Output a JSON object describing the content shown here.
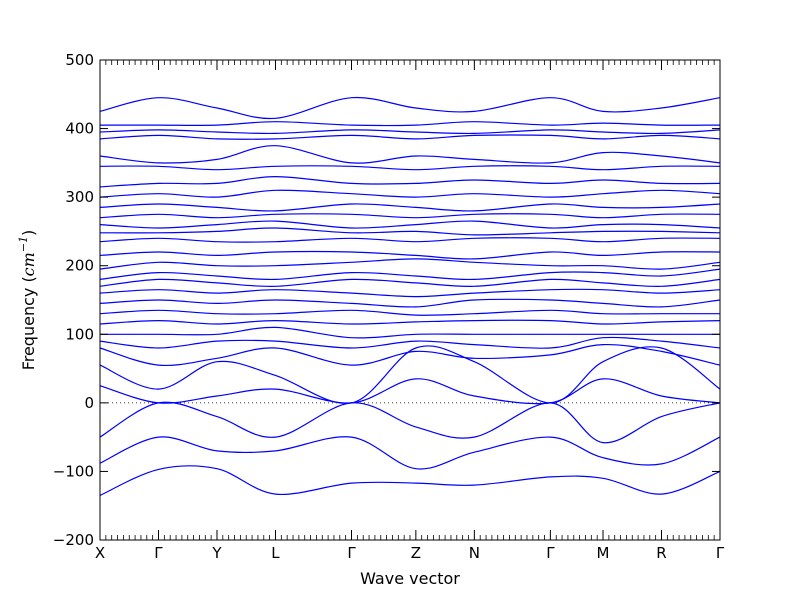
{
  "chart_data": {
    "type": "line",
    "title": "",
    "xlabel": "Wave vector",
    "ylabel_prefix": "Frequency (",
    "ylabel_unit": "cm",
    "ylabel_exp": "−1",
    "ylabel_suffix": ")",
    "ylim": [
      -200,
      500
    ],
    "yticks": [
      -200,
      -100,
      0,
      100,
      200,
      300,
      400,
      500
    ],
    "ytick_labels": [
      "−200",
      "−100",
      "0",
      "100",
      "200",
      "300",
      "400",
      "500"
    ],
    "x_segments": [
      "X",
      "Γ",
      "Y",
      "L",
      "Γ",
      "Z",
      "N",
      "Γ",
      "M",
      "R",
      "Γ"
    ],
    "x_segment_lengths": [
      1.0,
      1.0,
      1.0,
      1.3,
      1.1,
      1.0,
      1.3,
      0.9,
      1.0,
      1.0
    ],
    "zero_line": {
      "value": 0,
      "style": "dotted"
    },
    "grid": false,
    "legend": "none",
    "line_color": "#0000ff",
    "series": [
      {
        "values": [
          -135,
          -97,
          -96,
          -133,
          -117,
          -117,
          -120,
          -108,
          -110,
          -133,
          -100
        ]
      },
      {
        "values": [
          -88,
          -50,
          -70,
          -70,
          -50,
          -96,
          -72,
          -50,
          -80,
          -89,
          -50
        ]
      },
      {
        "values": [
          -50,
          0,
          -20,
          -50,
          0,
          -35,
          -50,
          0,
          -58,
          -20,
          0
        ]
      },
      {
        "values": [
          25,
          0,
          10,
          20,
          0,
          35,
          10,
          0,
          35,
          10,
          0
        ]
      },
      {
        "values": [
          55,
          20,
          60,
          40,
          0,
          80,
          60,
          0,
          60,
          80,
          20
        ]
      },
      {
        "values": [
          80,
          55,
          65,
          80,
          55,
          75,
          65,
          70,
          85,
          75,
          55
        ]
      },
      {
        "values": [
          90,
          80,
          90,
          90,
          80,
          90,
          85,
          80,
          95,
          90,
          80
        ]
      },
      {
        "values": [
          100,
          100,
          100,
          110,
          95,
          100,
          100,
          100,
          100,
          100,
          100
        ]
      },
      {
        "values": [
          115,
          120,
          115,
          120,
          115,
          118,
          120,
          120,
          115,
          118,
          120
        ]
      },
      {
        "values": [
          130,
          135,
          130,
          130,
          135,
          128,
          130,
          135,
          130,
          130,
          130
        ]
      },
      {
        "values": [
          145,
          150,
          145,
          150,
          145,
          140,
          150,
          150,
          145,
          140,
          150
        ]
      },
      {
        "values": [
          160,
          165,
          160,
          165,
          160,
          155,
          160,
          165,
          165,
          160,
          165
        ]
      },
      {
        "values": [
          170,
          180,
          175,
          170,
          180,
          175,
          170,
          180,
          175,
          170,
          180
        ]
      },
      {
        "values": [
          180,
          190,
          185,
          180,
          190,
          185,
          180,
          190,
          190,
          185,
          195
        ]
      },
      {
        "values": [
          195,
          205,
          200,
          200,
          205,
          210,
          205,
          200,
          200,
          195,
          205
        ]
      },
      {
        "values": [
          215,
          220,
          215,
          220,
          220,
          215,
          210,
          220,
          215,
          220,
          220
        ]
      },
      {
        "values": [
          235,
          240,
          235,
          235,
          240,
          235,
          240,
          240,
          235,
          240,
          240
        ]
      },
      {
        "values": [
          248,
          248,
          250,
          255,
          248,
          250,
          245,
          248,
          250,
          250,
          248
        ]
      },
      {
        "values": [
          260,
          255,
          260,
          265,
          255,
          260,
          265,
          255,
          260,
          260,
          255
        ]
      },
      {
        "values": [
          270,
          275,
          270,
          275,
          275,
          270,
          275,
          275,
          270,
          275,
          275
        ]
      },
      {
        "values": [
          285,
          290,
          285,
          280,
          290,
          285,
          280,
          290,
          285,
          285,
          290
        ]
      },
      {
        "values": [
          300,
          305,
          300,
          310,
          305,
          300,
          305,
          300,
          305,
          310,
          305
        ]
      },
      {
        "values": [
          315,
          320,
          320,
          330,
          320,
          320,
          325,
          320,
          325,
          320,
          320
        ]
      },
      {
        "values": [
          345,
          345,
          340,
          345,
          345,
          340,
          345,
          345,
          340,
          345,
          345
        ]
      },
      {
        "values": [
          360,
          350,
          355,
          375,
          350,
          360,
          355,
          350,
          365,
          360,
          350
        ]
      },
      {
        "values": [
          385,
          390,
          385,
          385,
          390,
          385,
          390,
          390,
          385,
          390,
          385
        ]
      },
      {
        "values": [
          395,
          398,
          395,
          393,
          398,
          395,
          393,
          398,
          395,
          393,
          398
        ]
      },
      {
        "values": [
          405,
          405,
          405,
          410,
          405,
          405,
          410,
          405,
          408,
          405,
          405
        ]
      },
      {
        "values": [
          425,
          445,
          430,
          415,
          445,
          430,
          425,
          445,
          425,
          430,
          445
        ]
      }
    ]
  }
}
